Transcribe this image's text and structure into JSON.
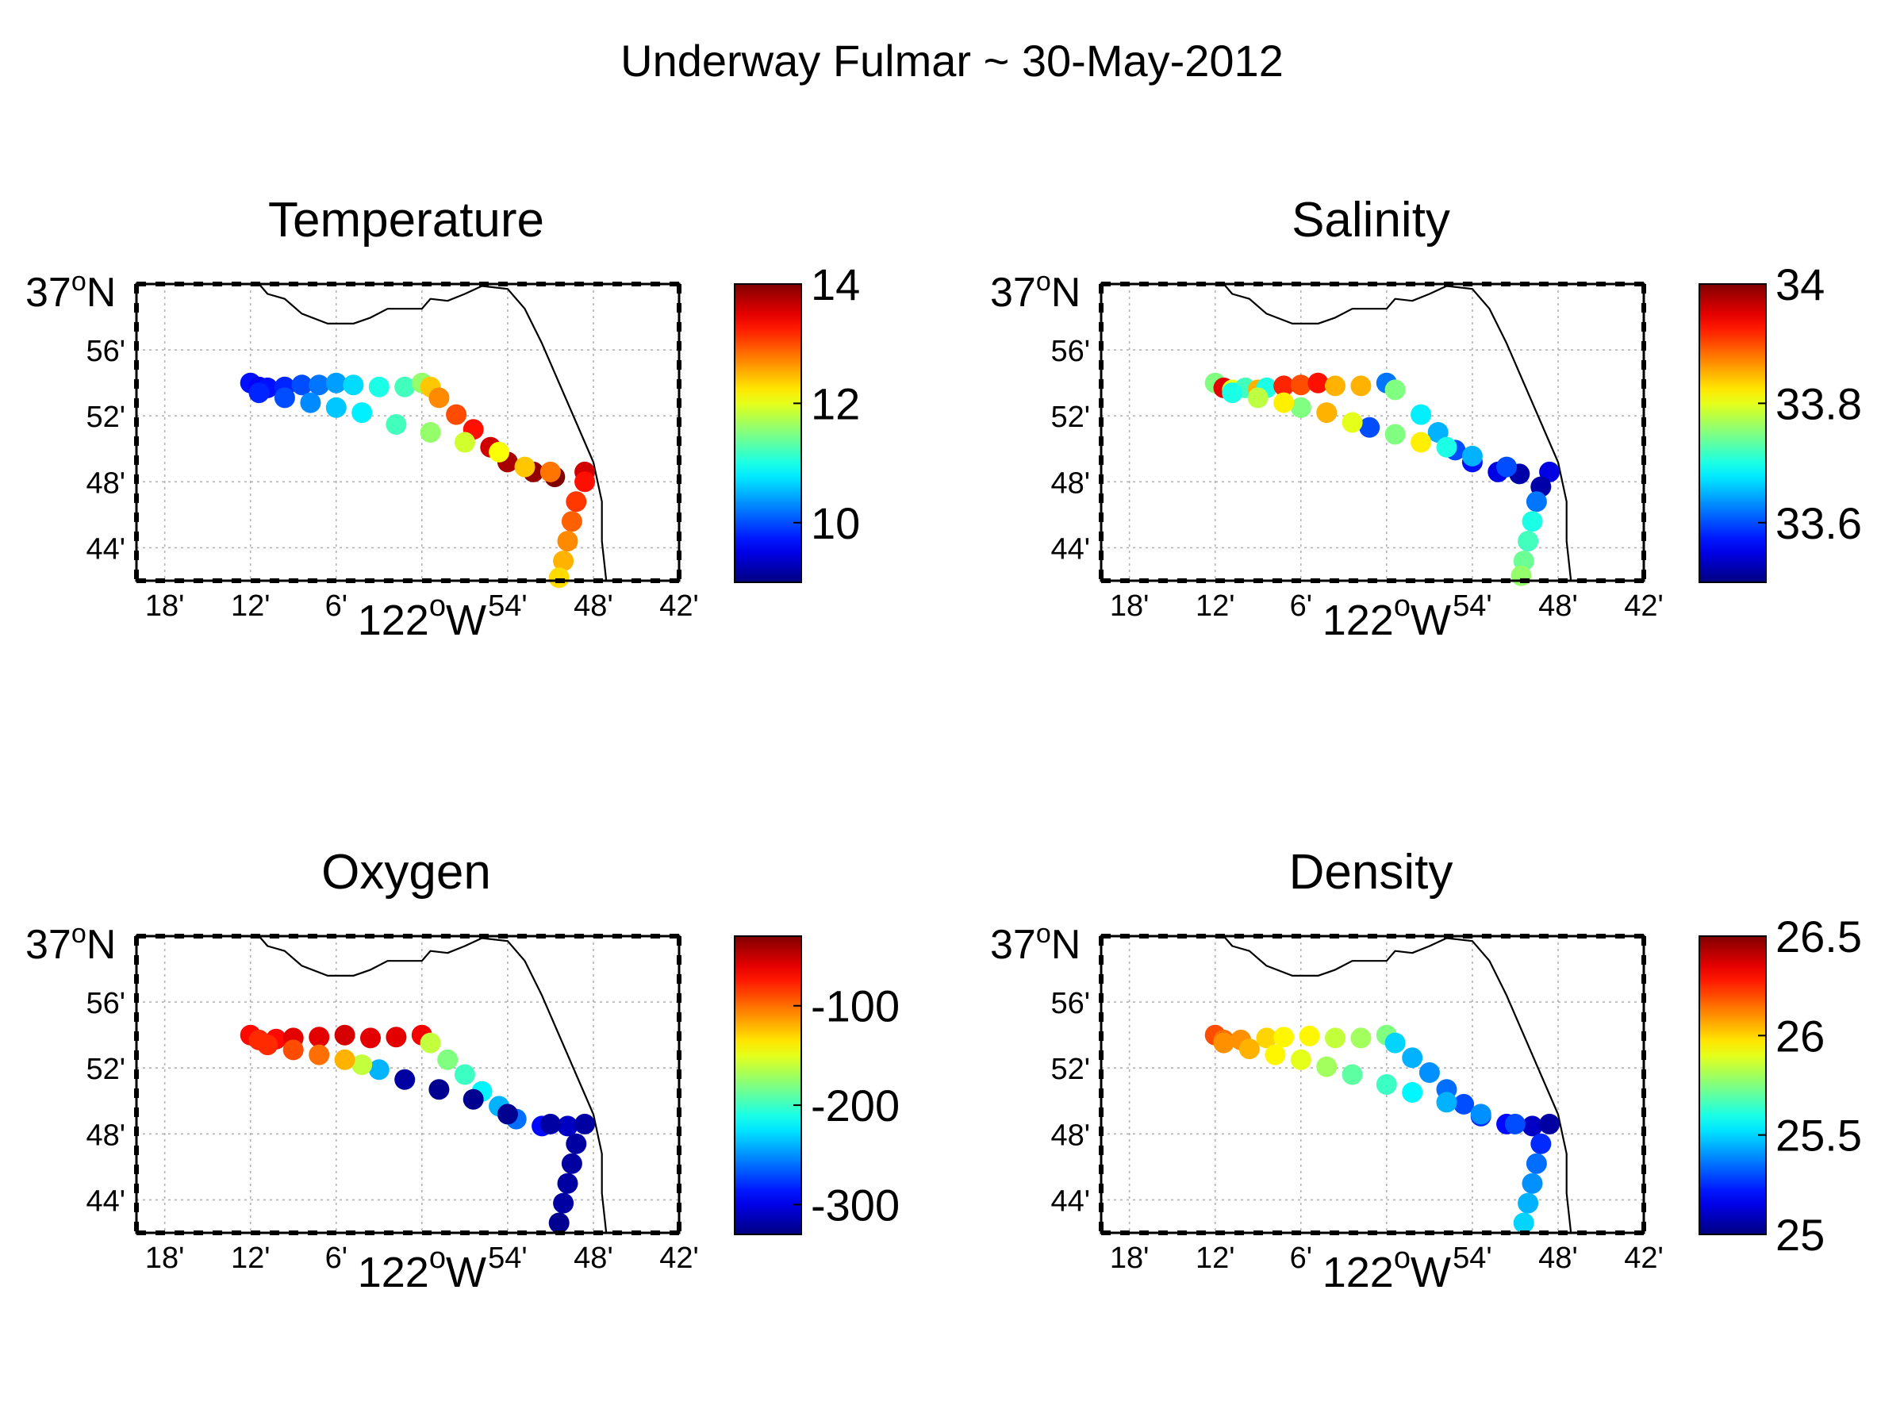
{
  "figure": {
    "title": "Underway Fulmar ~ 30-May-2012"
  },
  "colormap": "jet",
  "map_axes": {
    "lat_top_label": "37",
    "lat_top_hemisphere": "N",
    "degree_symbol": "o",
    "lat_tick_labels": [
      "56'",
      "52'",
      "48'",
      "44'"
    ],
    "lat_ticks_minutes": [
      56,
      52,
      48,
      44
    ],
    "lon_tick_labels": [
      "18'",
      "12'",
      "6'",
      "54'",
      "48'",
      "42'"
    ],
    "lon_ticks_deg": [
      -123.3,
      -123.2,
      -123.1,
      -122.9,
      -122.8,
      -122.7
    ],
    "lon_center_label": "122",
    "lon_center_hemisphere": "W",
    "lon_range": [
      -123.333,
      -122.7
    ],
    "lat_range": [
      36.7,
      37.0
    ],
    "grid": true
  },
  "coastline": [
    [
      -123.19,
      37.0
    ],
    [
      -123.18,
      36.99
    ],
    [
      -123.16,
      36.985
    ],
    [
      -123.14,
      36.97
    ],
    [
      -123.11,
      36.96
    ],
    [
      -123.08,
      36.96
    ],
    [
      -123.06,
      36.966
    ],
    [
      -123.04,
      36.975
    ],
    [
      -123.0,
      36.975
    ],
    [
      -122.99,
      36.985
    ],
    [
      -122.97,
      36.983
    ],
    [
      -122.95,
      36.99
    ],
    [
      -122.93,
      36.998
    ],
    [
      -122.9,
      36.995
    ],
    [
      -122.88,
      36.975
    ],
    [
      -122.86,
      36.94
    ],
    [
      -122.84,
      36.9
    ],
    [
      -122.82,
      36.86
    ],
    [
      -122.8,
      36.82
    ],
    [
      -122.79,
      36.78
    ],
    [
      -122.79,
      36.74
    ],
    [
      -122.785,
      36.7
    ]
  ],
  "panels": [
    {
      "title": "Temperature",
      "colorbar": {
        "min": 9.0,
        "max": 14.0,
        "ticks": [
          10,
          12,
          14
        ],
        "tick_labels": [
          "10",
          "12",
          "14"
        ]
      },
      "chart_data": {
        "type": "scatter",
        "variable": "Temperature",
        "points": [
          [
            -123.2,
            36.9,
            9.7
          ],
          [
            -123.19,
            36.896,
            9.6
          ],
          [
            -123.18,
            36.895,
            9.7
          ],
          [
            -123.16,
            36.896,
            9.8
          ],
          [
            -123.14,
            36.898,
            10.0
          ],
          [
            -123.12,
            36.898,
            10.2
          ],
          [
            -123.1,
            36.9,
            10.4
          ],
          [
            -123.08,
            36.898,
            10.7
          ],
          [
            -123.05,
            36.896,
            11.0
          ],
          [
            -123.02,
            36.896,
            11.2
          ],
          [
            -123.0,
            36.9,
            11.6
          ],
          [
            -122.99,
            36.896,
            12.4
          ],
          [
            -122.98,
            36.885,
            12.7
          ],
          [
            -122.96,
            36.868,
            13.0
          ],
          [
            -122.94,
            36.853,
            13.3
          ],
          [
            -122.92,
            36.835,
            13.6
          ],
          [
            -122.9,
            36.82,
            13.8
          ],
          [
            -122.87,
            36.81,
            13.9
          ],
          [
            -122.845,
            36.805,
            14.0
          ],
          [
            -122.81,
            36.81,
            13.6
          ],
          [
            -122.85,
            36.81,
            12.8
          ],
          [
            -122.88,
            36.815,
            12.4
          ],
          [
            -122.91,
            36.83,
            12.1
          ],
          [
            -122.95,
            36.84,
            11.9
          ],
          [
            -122.99,
            36.85,
            11.6
          ],
          [
            -123.03,
            36.858,
            11.2
          ],
          [
            -123.07,
            36.87,
            10.8
          ],
          [
            -123.1,
            36.875,
            10.6
          ],
          [
            -123.13,
            36.88,
            10.3
          ],
          [
            -123.16,
            36.885,
            10.0
          ],
          [
            -123.19,
            36.89,
            9.8
          ],
          [
            -122.81,
            36.8,
            13.3
          ],
          [
            -122.82,
            36.78,
            13.1
          ],
          [
            -122.825,
            36.76,
            12.9
          ],
          [
            -122.83,
            36.74,
            12.7
          ],
          [
            -122.835,
            36.72,
            12.5
          ],
          [
            -122.84,
            36.703,
            12.3
          ]
        ]
      }
    },
    {
      "title": "Salinity",
      "colorbar": {
        "min": 33.5,
        "max": 34.0,
        "ticks": [
          33.6,
          33.8,
          34.0
        ],
        "tick_labels": [
          "33.6",
          "33.8",
          "34"
        ]
      },
      "chart_data": {
        "type": "scatter",
        "variable": "Salinity",
        "points": [
          [
            -123.2,
            36.9,
            33.75
          ],
          [
            -123.19,
            36.895,
            33.95
          ],
          [
            -123.18,
            36.893,
            33.8
          ],
          [
            -123.165,
            36.895,
            33.72
          ],
          [
            -123.15,
            36.893,
            33.85
          ],
          [
            -123.14,
            36.895,
            33.7
          ],
          [
            -123.12,
            36.897,
            33.92
          ],
          [
            -123.1,
            36.898,
            33.9
          ],
          [
            -123.08,
            36.9,
            33.93
          ],
          [
            -123.06,
            36.897,
            33.85
          ],
          [
            -123.03,
            36.897,
            33.85
          ],
          [
            -123.0,
            36.9,
            33.62
          ],
          [
            -122.99,
            36.893,
            33.75
          ],
          [
            -122.96,
            36.868,
            33.68
          ],
          [
            -122.94,
            36.85,
            33.65
          ],
          [
            -122.92,
            36.832,
            33.6
          ],
          [
            -122.9,
            36.82,
            33.57
          ],
          [
            -122.87,
            36.81,
            33.55
          ],
          [
            -122.845,
            36.808,
            33.52
          ],
          [
            -122.81,
            36.81,
            33.55
          ],
          [
            -122.86,
            36.815,
            33.6
          ],
          [
            -122.9,
            36.826,
            33.65
          ],
          [
            -122.93,
            36.835,
            33.7
          ],
          [
            -122.96,
            36.84,
            33.82
          ],
          [
            -122.99,
            36.848,
            33.75
          ],
          [
            -123.02,
            36.855,
            33.6
          ],
          [
            -123.04,
            36.86,
            33.8
          ],
          [
            -123.07,
            36.87,
            33.85
          ],
          [
            -123.1,
            36.875,
            33.75
          ],
          [
            -123.12,
            36.88,
            33.82
          ],
          [
            -123.15,
            36.885,
            33.78
          ],
          [
            -123.18,
            36.89,
            33.7
          ],
          [
            -122.82,
            36.795,
            33.52
          ],
          [
            -122.825,
            36.78,
            33.62
          ],
          [
            -122.83,
            36.76,
            33.7
          ],
          [
            -122.835,
            36.74,
            33.72
          ],
          [
            -122.84,
            36.72,
            33.74
          ],
          [
            -122.843,
            36.705,
            33.76
          ]
        ]
      }
    },
    {
      "title": "Oxygen",
      "colorbar": {
        "min": -330,
        "max": -30,
        "ticks": [
          -300,
          -200,
          -100
        ],
        "tick_labels": [
          "-300",
          "-200",
          "-100"
        ]
      },
      "chart_data": {
        "type": "scatter",
        "variable": "Oxygen",
        "points": [
          [
            -123.2,
            36.9,
            -70
          ],
          [
            -123.19,
            36.895,
            -80
          ],
          [
            -123.17,
            36.896,
            -70
          ],
          [
            -123.15,
            36.897,
            -60
          ],
          [
            -123.12,
            36.898,
            -60
          ],
          [
            -123.09,
            36.9,
            -55
          ],
          [
            -123.06,
            36.897,
            -60
          ],
          [
            -123.03,
            36.898,
            -60
          ],
          [
            -123.0,
            36.9,
            -65
          ],
          [
            -122.99,
            36.892,
            -160
          ],
          [
            -122.97,
            36.875,
            -180
          ],
          [
            -122.95,
            36.86,
            -200
          ],
          [
            -122.93,
            36.843,
            -220
          ],
          [
            -122.91,
            36.828,
            -240
          ],
          [
            -122.89,
            36.815,
            -260
          ],
          [
            -122.86,
            36.808,
            -290
          ],
          [
            -122.83,
            36.808,
            -310
          ],
          [
            -122.81,
            36.81,
            -320
          ],
          [
            -122.85,
            36.81,
            -320
          ],
          [
            -122.9,
            36.82,
            -325
          ],
          [
            -122.94,
            36.835,
            -325
          ],
          [
            -122.98,
            36.845,
            -325
          ],
          [
            -123.02,
            36.855,
            -320
          ],
          [
            -123.05,
            36.865,
            -240
          ],
          [
            -123.07,
            36.87,
            -160
          ],
          [
            -123.09,
            36.875,
            -120
          ],
          [
            -123.12,
            36.88,
            -100
          ],
          [
            -123.15,
            36.885,
            -90
          ],
          [
            -123.18,
            36.89,
            -80
          ],
          [
            -122.82,
            36.79,
            -320
          ],
          [
            -122.825,
            36.77,
            -320
          ],
          [
            -122.83,
            36.75,
            -320
          ],
          [
            -122.835,
            36.73,
            -320
          ],
          [
            -122.84,
            36.71,
            -325
          ]
        ]
      }
    },
    {
      "title": "Density",
      "colorbar": {
        "min": 25.0,
        "max": 26.5,
        "ticks": [
          25.0,
          25.5,
          26.0,
          26.5
        ],
        "tick_labels": [
          "25",
          "25.5",
          "26",
          "26.5"
        ]
      },
      "chart_data": {
        "type": "scatter",
        "variable": "Density",
        "points": [
          [
            -123.2,
            36.9,
            26.2
          ],
          [
            -123.19,
            36.895,
            26.15
          ],
          [
            -123.17,
            36.895,
            26.1
          ],
          [
            -123.14,
            36.897,
            26.0
          ],
          [
            -123.12,
            36.898,
            25.95
          ],
          [
            -123.09,
            36.899,
            25.95
          ],
          [
            -123.06,
            36.897,
            25.85
          ],
          [
            -123.03,
            36.897,
            25.8
          ],
          [
            -123.0,
            36.9,
            25.75
          ],
          [
            -122.99,
            36.892,
            25.5
          ],
          [
            -122.97,
            36.877,
            25.45
          ],
          [
            -122.95,
            36.862,
            25.4
          ],
          [
            -122.93,
            36.845,
            25.35
          ],
          [
            -122.91,
            36.83,
            25.3
          ],
          [
            -122.89,
            36.818,
            25.25
          ],
          [
            -122.86,
            36.81,
            25.2
          ],
          [
            -122.83,
            36.808,
            25.1
          ],
          [
            -122.81,
            36.81,
            25.05
          ],
          [
            -122.85,
            36.81,
            25.3
          ],
          [
            -122.89,
            36.82,
            25.4
          ],
          [
            -122.93,
            36.832,
            25.45
          ],
          [
            -122.97,
            36.842,
            25.55
          ],
          [
            -123.0,
            36.85,
            25.65
          ],
          [
            -123.04,
            36.86,
            25.7
          ],
          [
            -123.07,
            36.868,
            25.8
          ],
          [
            -123.1,
            36.875,
            25.9
          ],
          [
            -123.13,
            36.88,
            25.95
          ],
          [
            -123.16,
            36.886,
            26.05
          ],
          [
            -123.19,
            36.892,
            26.1
          ],
          [
            -122.82,
            36.79,
            25.25
          ],
          [
            -122.825,
            36.77,
            25.35
          ],
          [
            -122.83,
            36.75,
            25.4
          ],
          [
            -122.835,
            36.73,
            25.45
          ],
          [
            -122.84,
            36.71,
            25.5
          ]
        ]
      }
    }
  ]
}
